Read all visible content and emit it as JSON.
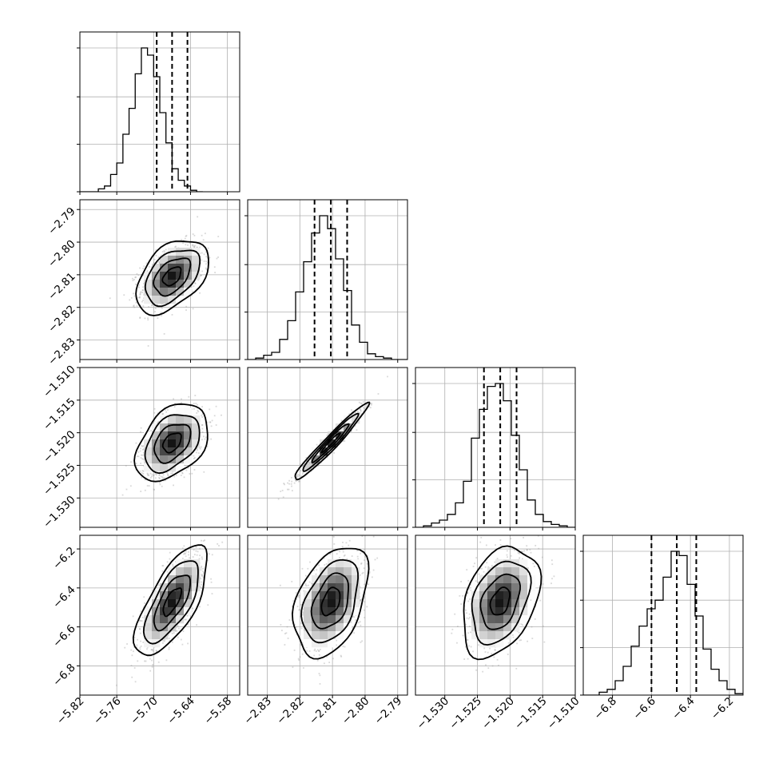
{
  "chart_data": {
    "type": "corner",
    "n_params": 4,
    "grid": true,
    "params": [
      {
        "range": [
          -5.82,
          -5.56
        ],
        "ticks": [
          -5.82,
          -5.76,
          -5.7,
          -5.64,
          -5.58
        ],
        "tick_labels": [
          "−5.82",
          "−5.76",
          "−5.70",
          "−5.64",
          "−5.58"
        ],
        "mean": -5.67,
        "sd": 0.025,
        "quantiles": [
          -5.695,
          -5.67,
          -5.645
        ],
        "hist_edges_start": -5.82,
        "hist_bin_width": 0.01,
        "hist_counts": [
          0,
          0,
          0,
          2,
          4,
          12,
          20,
          40,
          58,
          82,
          100,
          95,
          80,
          55,
          34,
          16,
          8,
          4,
          1,
          0
        ],
        "hist_y_ticks": [
          0.33,
          0.66,
          1.0
        ]
      },
      {
        "range": [
          -2.836,
          -2.787
        ],
        "ticks": [
          -2.83,
          -2.82,
          -2.81,
          -2.8,
          -2.79
        ],
        "tick_labels": [
          "−2.83",
          "−2.82",
          "−2.81",
          "−2.80",
          "−2.79"
        ],
        "mean": -2.8105,
        "sd": 0.0048,
        "quantiles": [
          -2.8155,
          -2.8105,
          -2.8055
        ],
        "hist_edges_start": -2.836,
        "hist_bin_width": 0.00245,
        "hist_counts": [
          0,
          1,
          3,
          5,
          14,
          27,
          47,
          68,
          88,
          100,
          91,
          70,
          48,
          24,
          12,
          4,
          2,
          1,
          0,
          0
        ],
        "hist_y_ticks": [
          0.33,
          0.66,
          1.0
        ]
      },
      {
        "range": [
          -1.5345,
          -1.51
        ],
        "ticks": [
          -1.53,
          -1.525,
          -1.52,
          -1.515,
          -1.51
        ],
        "tick_labels": [
          "−1.530",
          "−1.525",
          "−1.520",
          "−1.515",
          "−1.510"
        ],
        "mean": -1.5215,
        "sd": 0.0025,
        "quantiles": [
          -1.524,
          -1.5215,
          -1.519
        ],
        "hist_edges_start": -1.5345,
        "hist_bin_width": 0.001225,
        "hist_counts": [
          0,
          1,
          3,
          5,
          9,
          17,
          32,
          62,
          82,
          98,
          100,
          88,
          64,
          40,
          19,
          9,
          4,
          2,
          1,
          0
        ],
        "hist_y_ticks": [
          0.33,
          0.66,
          1.0
        ]
      },
      {
        "range": [
          -6.95,
          -6.13
        ],
        "ticks": [
          -6.8,
          -6.6,
          -6.4,
          -6.2
        ],
        "tick_labels": [
          "−6.8",
          "−6.6",
          "−6.4",
          "−6.2"
        ],
        "mean": -6.47,
        "sd": 0.12,
        "quantiles": [
          -6.6,
          -6.47,
          -6.37
        ],
        "hist_edges_start": -6.95,
        "hist_bin_width": 0.041,
        "hist_counts": [
          0,
          0,
          2,
          4,
          10,
          20,
          34,
          48,
          60,
          66,
          82,
          100,
          97,
          77,
          55,
          32,
          18,
          10,
          4,
          1
        ],
        "hist_y_ticks": [
          0.33,
          0.66,
          1.0
        ]
      }
    ],
    "correlations": [
      [
        1.0,
        0.45,
        0.4,
        0.7
      ],
      [
        0.45,
        1.0,
        0.97,
        0.4
      ],
      [
        0.4,
        0.97,
        1.0,
        0.35
      ],
      [
        0.7,
        0.4,
        0.35,
        1.0
      ]
    ],
    "contour_levels_sigma": [
      0.5,
      1.0,
      1.5,
      2.0
    ],
    "n_scatter_points": 1100,
    "colors": {
      "line": "#000000",
      "points": "#9a9a9a",
      "grid": "#b0b0b0",
      "background": "#ffffff"
    }
  }
}
